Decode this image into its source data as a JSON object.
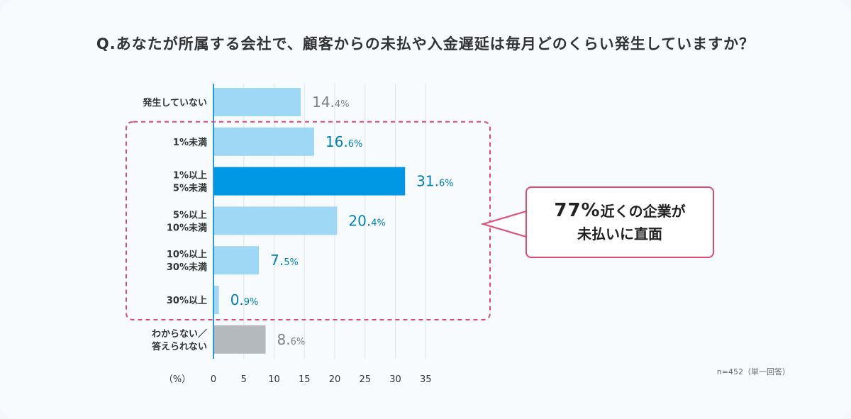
{
  "title": "Q.あなたが所属する会社で、顧客からの未払や入金遅延は毎月どのくらい発生していますか？",
  "chart_data": {
    "type": "bar",
    "orientation": "horizontal",
    "xlabel": "（%）",
    "xlim": [
      0,
      35
    ],
    "xticks": [
      0,
      5,
      10,
      15,
      20,
      25,
      30,
      35
    ],
    "grid": true,
    "categories": [
      [
        "発生していない"
      ],
      [
        "1%未満"
      ],
      [
        "1%以上",
        "5%未満"
      ],
      [
        "5%以上",
        "10%未満"
      ],
      [
        "10%以上",
        "30%未満"
      ],
      [
        "30%以上"
      ],
      [
        "わからない／",
        "答えられない"
      ]
    ],
    "values": [
      14.4,
      16.6,
      31.6,
      20.4,
      7.5,
      0.9,
      8.6
    ],
    "bar_colors": [
      "#9ed8f5",
      "#9ed8f5",
      "#0098e4",
      "#9ed8f5",
      "#9ed8f5",
      "#9ed8f5",
      "#b4b9bd"
    ],
    "label_colors": [
      "#808080",
      "#0080b8",
      "#0080b8",
      "#0080b8",
      "#0080b8",
      "#0080b8",
      "#808080"
    ],
    "highlight_range": [
      1,
      5
    ],
    "highlight_color": "#e04a72"
  },
  "callout": {
    "emphasis": "77%",
    "line1_rest": "近くの企業が",
    "line2": "未払いに直面"
  },
  "sample_note": "n=452（単一回答）"
}
